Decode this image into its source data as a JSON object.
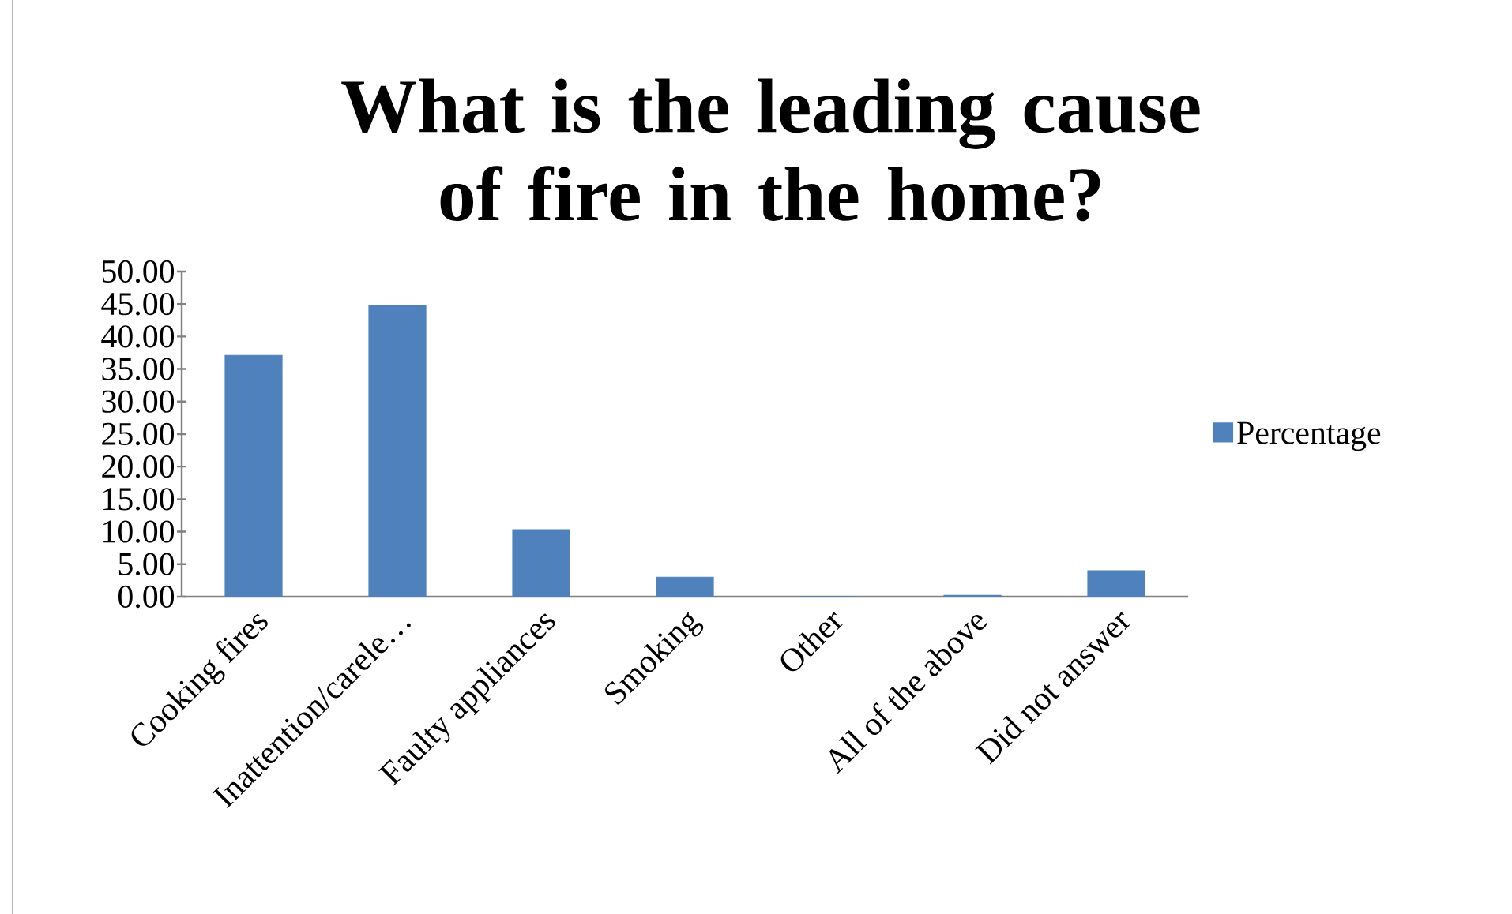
{
  "chart_data": {
    "type": "bar",
    "title": "What is the leading cause of fire in the home?",
    "categories": [
      "Cooking fires",
      "Inattention/carele…",
      "Faulty appliances",
      "Smoking",
      "Other",
      "All of the above",
      "Did not answer"
    ],
    "series": [
      {
        "name": "Percentage",
        "color": "#4f81bd",
        "values": [
          37.1,
          44.7,
          10.3,
          3.0,
          0,
          0.2,
          4.0
        ]
      }
    ],
    "ylim": [
      0,
      50
    ],
    "yticks": [
      {
        "value": 0,
        "label": "0.00"
      },
      {
        "value": 5,
        "label": "5.00"
      },
      {
        "value": 10,
        "label": "10.00"
      },
      {
        "value": 15,
        "label": "15.00"
      },
      {
        "value": 20,
        "label": "20.00"
      },
      {
        "value": 25,
        "label": "25.00"
      },
      {
        "value": 30,
        "label": "30.00"
      },
      {
        "value": 35,
        "label": "35.00"
      },
      {
        "value": 40,
        "label": "40.00"
      },
      {
        "value": 45,
        "label": "45.00"
      },
      {
        "value": 50,
        "label": "50.00"
      }
    ],
    "legend": "right",
    "grid": false
  }
}
